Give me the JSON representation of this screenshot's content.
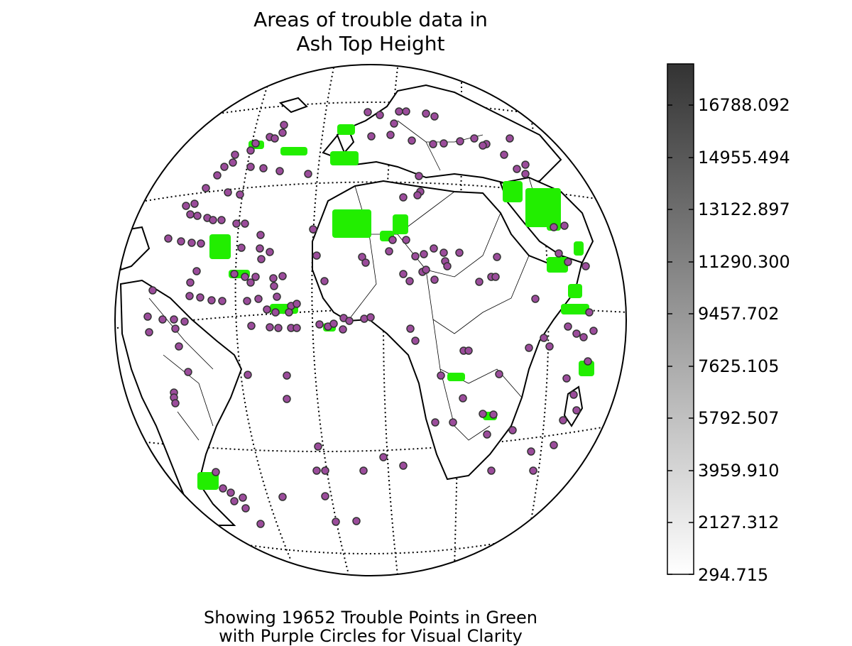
{
  "figure": {
    "title_line1": "Areas of trouble data in",
    "title_line2": "Ash Top Height",
    "caption_line1": "Showing 19652 Trouble Points in Green",
    "caption_line2": "with Purple Circles for Visual Clarity"
  },
  "map": {
    "projection": "orthographic",
    "land_fill": "#ffffff",
    "coastline_color": "#000000",
    "graticule_style": "dotted",
    "point_fill_color": "#22ee00",
    "point_circle_color": "#9b4c9b",
    "point_circle_edge": "#333333"
  },
  "colorbar": {
    "min": 294.715,
    "max": 18000,
    "colormap": "white-to-dark-gray",
    "tick_labels": [
      "16788.092",
      "14955.494",
      "13122.897",
      "11290.300",
      "9457.702",
      "7625.105",
      "5792.507",
      "3959.910",
      "2127.312",
      "294.715"
    ]
  }
}
